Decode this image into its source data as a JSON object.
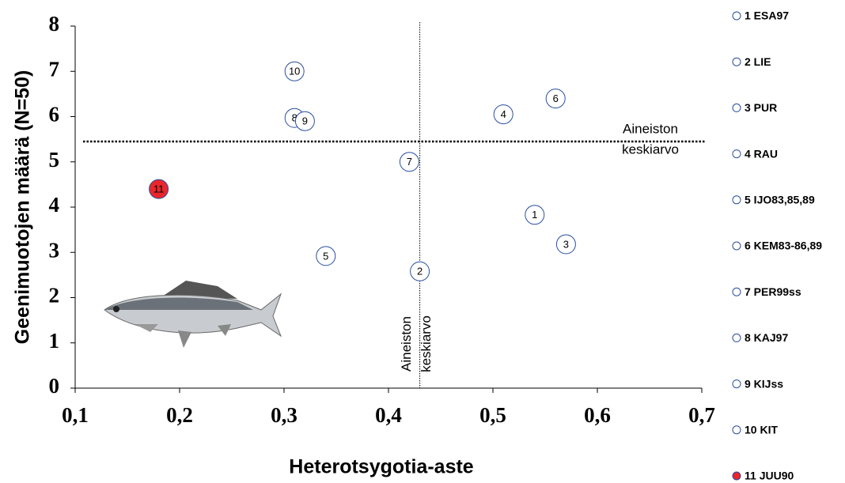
{
  "chart_data": {
    "type": "scatter",
    "x_label": "Heterotsygotia-aste",
    "y_label": "Geenimuotojen määrä (N=50)",
    "xlim": [
      0.1,
      0.7
    ],
    "xticks": [
      {
        "value": 0.1,
        "label": "0,1"
      },
      {
        "value": 0.2,
        "label": "0,2"
      },
      {
        "value": 0.3,
        "label": "0,3"
      },
      {
        "value": 0.4,
        "label": "0,4"
      },
      {
        "value": 0.5,
        "label": "0,5"
      },
      {
        "value": 0.6,
        "label": "0,6"
      },
      {
        "value": 0.7,
        "label": "0,7"
      }
    ],
    "ylim": [
      0,
      8
    ],
    "yticks": [
      0,
      1,
      2,
      3,
      4,
      5,
      6,
      7,
      8
    ],
    "edge_color": "#2a4fa0",
    "series": [
      {
        "name": "1 ESA97",
        "label": "1",
        "color": "#ffffff",
        "x": [
          0.54
        ],
        "values": [
          3.83
        ]
      },
      {
        "name": "2 LIE",
        "label": "2",
        "color": "#ffffff",
        "x": [
          0.43
        ],
        "values": [
          2.58
        ]
      },
      {
        "name": "3 PUR",
        "label": "3",
        "color": "#ffffff",
        "x": [
          0.57
        ],
        "values": [
          3.18
        ]
      },
      {
        "name": "4 RAU",
        "label": "4",
        "color": "#ffffff",
        "x": [
          0.51
        ],
        "values": [
          6.05
        ]
      },
      {
        "name": "5 IJO83,85,89",
        "label": "5",
        "color": "#ffffff",
        "x": [
          0.34
        ],
        "values": [
          2.92
        ]
      },
      {
        "name": "6 KEM83-86,89",
        "label": "6",
        "color": "#ffffff",
        "x": [
          0.56
        ],
        "values": [
          6.4
        ]
      },
      {
        "name": "7 PER99ss",
        "label": "7",
        "color": "#ffffff",
        "x": [
          0.42
        ],
        "values": [
          5.0
        ]
      },
      {
        "name": "8 KAJ97",
        "label": "8",
        "color": "#ffffff",
        "x": [
          0.31
        ],
        "values": [
          5.97
        ]
      },
      {
        "name": "9 KIJss",
        "label": "9",
        "color": "#ffffff",
        "x": [
          0.32
        ],
        "values": [
          5.9
        ]
      },
      {
        "name": "10 KIT",
        "label": "10",
        "color": "#ffffff",
        "x": [
          0.31
        ],
        "values": [
          7.0
        ]
      },
      {
        "name": "11 JUU90",
        "label": "11",
        "color": "#e8262b",
        "x": [
          0.18
        ],
        "values": [
          4.4
        ]
      }
    ],
    "mean_lines": [
      {
        "axis": "x",
        "value": 0.43,
        "label": [
          "Aineiston",
          "keskiarvo"
        ]
      },
      {
        "axis": "y",
        "value": 5.45,
        "label": [
          "Aineiston",
          "keskiarvo"
        ]
      }
    ]
  }
}
